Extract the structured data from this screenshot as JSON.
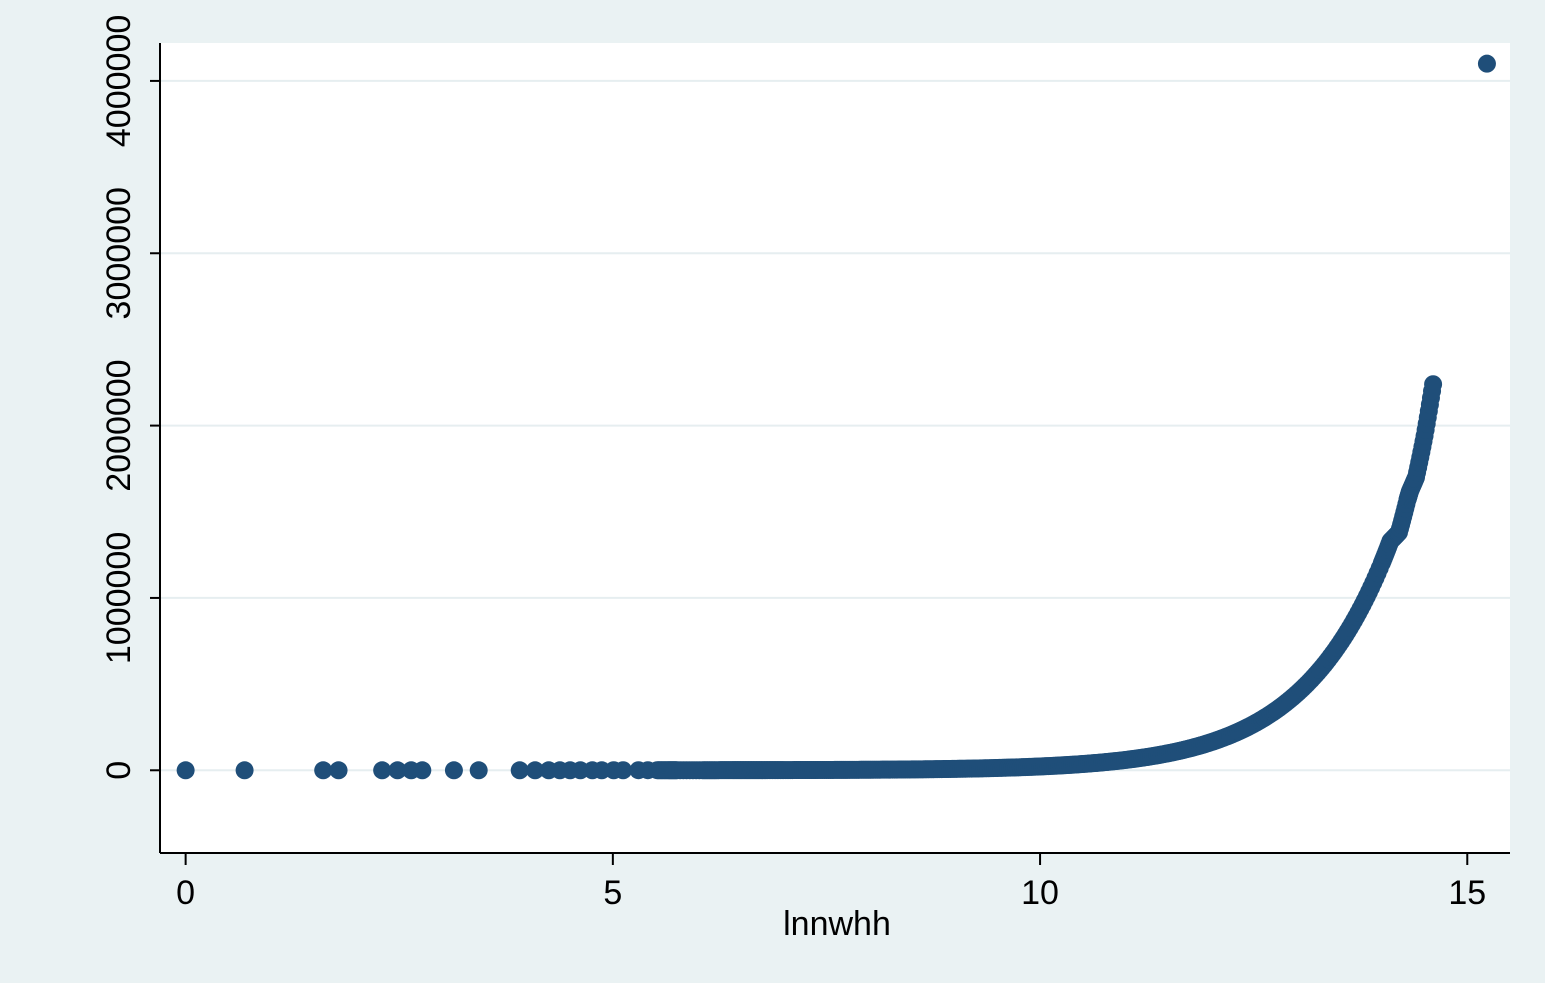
{
  "chart_data": {
    "type": "scatter",
    "title": "",
    "xlabel": "lnnwhh",
    "ylabel": "",
    "xlim": [
      -0.3,
      15.5
    ],
    "ylim": [
      -480000,
      4220000
    ],
    "xticks": [
      0,
      5,
      10,
      15
    ],
    "xtick_labels": [
      "0",
      "5",
      "10",
      "15"
    ],
    "yticks": [
      0,
      1000000,
      2000000,
      3000000,
      4000000
    ],
    "ytick_labels": [
      "0",
      "1000000",
      "2000000",
      "3000000",
      "4000000"
    ],
    "grid": "horizontal",
    "legend": "none",
    "colors": {
      "background": "#eaf2f3",
      "plot_area": "#ffffff",
      "gridline": "#e6eef0",
      "marker": "#1f4e79"
    },
    "series": [
      {
        "points": [
          [
            0,
            1
          ],
          [
            0.69,
            2
          ],
          [
            1.61,
            5
          ],
          [
            1.79,
            6
          ],
          [
            2.3,
            10
          ],
          [
            2.48,
            12
          ],
          [
            2.64,
            14
          ],
          [
            2.77,
            16
          ],
          [
            3.14,
            23
          ],
          [
            3.43,
            31
          ],
          [
            3.91,
            50
          ],
          [
            4.09,
            60
          ],
          [
            4.25,
            70
          ],
          [
            4.38,
            80
          ],
          [
            4.5,
            90
          ],
          [
            4.62,
            101
          ],
          [
            4.76,
            117
          ],
          [
            4.87,
            130
          ],
          [
            5.01,
            150
          ],
          [
            5.12,
            167
          ],
          [
            5.3,
            200
          ],
          [
            5.41,
            224
          ],
          [
            5.52,
            250
          ],
          [
            5.65,
            284
          ],
          [
            5.75,
            314
          ],
          [
            6.05,
            424
          ],
          [
            6.21,
            498
          ],
          [
            6.4,
            602
          ],
          [
            6.55,
            699
          ],
          [
            6.7,
            812
          ],
          [
            6.85,
            944
          ],
          [
            7.0,
            1097
          ],
          [
            7.2,
            1339
          ],
          [
            7.4,
            1636
          ],
          [
            7.6,
            1998
          ],
          [
            7.8,
            2441
          ],
          [
            8.0,
            2981
          ],
          [
            8.2,
            3641
          ],
          [
            8.4,
            4447
          ],
          [
            8.6,
            5432
          ],
          [
            8.8,
            6634
          ],
          [
            9.0,
            8103
          ],
          [
            9.2,
            9897
          ],
          [
            9.4,
            12088
          ],
          [
            9.6,
            14765
          ],
          [
            9.8,
            18034
          ],
          [
            10.0,
            22026
          ],
          [
            10.2,
            26903
          ],
          [
            10.4,
            32860
          ],
          [
            10.6,
            40135
          ],
          [
            10.8,
            49021
          ],
          [
            11.0,
            59874
          ],
          [
            11.2,
            73130
          ],
          [
            11.4,
            89321
          ],
          [
            11.6,
            109097
          ],
          [
            11.8,
            133252
          ],
          [
            12.0,
            162755
          ],
          [
            12.2,
            198789
          ],
          [
            12.4,
            242802
          ],
          [
            12.6,
            296559
          ],
          [
            12.8,
            362217
          ],
          [
            13.0,
            442413
          ],
          [
            13.2,
            540364
          ],
          [
            13.4,
            660003
          ],
          [
            13.6,
            806129
          ],
          [
            13.8,
            984609
          ],
          [
            14.0,
            1202604
          ],
          [
            14.1,
            1328992
          ],
          [
            14.2,
            1380000
          ],
          [
            14.3,
            1570000
          ],
          [
            14.33,
            1620000
          ],
          [
            14.4,
            1700000
          ],
          [
            14.5,
            1940000
          ],
          [
            14.6,
            2240000
          ],
          [
            15.23,
            4100000
          ]
        ]
      }
    ]
  }
}
